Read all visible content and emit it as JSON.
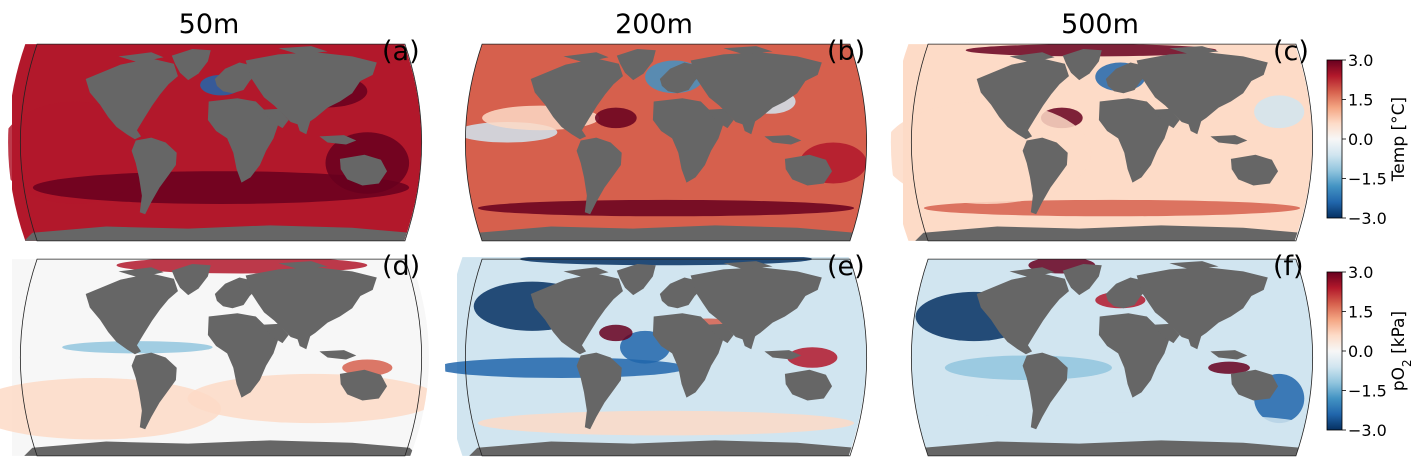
{
  "chart_data": {
    "type": "heatmap",
    "column_titles": [
      "50m",
      "200m",
      "500m"
    ],
    "panels": [
      {
        "label": "(a)",
        "depth": "50m",
        "variable": "temp"
      },
      {
        "label": "(b)",
        "depth": "200m",
        "variable": "temp"
      },
      {
        "label": "(c)",
        "depth": "500m",
        "variable": "temp"
      },
      {
        "label": "(d)",
        "depth": "50m",
        "variable": "po2"
      },
      {
        "label": "(e)",
        "depth": "200m",
        "variable": "po2"
      },
      {
        "label": "(f)",
        "depth": "500m",
        "variable": "po2"
      }
    ],
    "colorbars": [
      {
        "variable": "temp",
        "label": "Temp [°C]",
        "range": [
          -3.0,
          3.0
        ],
        "ticks": [
          "3.0",
          "1.5",
          "0.0",
          "−1.5",
          "−3.0"
        ]
      },
      {
        "variable": "po2",
        "label_main": "pO",
        "label_sub": "2",
        "label_unit": " [kPa]",
        "range": [
          -3.0,
          3.0
        ],
        "ticks": [
          "3.0",
          "1.5",
          "0.0",
          "−1.5",
          "−3.0"
        ]
      }
    ],
    "colormap": [
      "#053061",
      "#2166ac",
      "#4393c3",
      "#92c5de",
      "#d1e5f0",
      "#f7f7f7",
      "#fddbc7",
      "#f4a582",
      "#d6604d",
      "#b2182b",
      "#67001f"
    ],
    "land_color": "#666666",
    "map_projection": "robinson"
  }
}
